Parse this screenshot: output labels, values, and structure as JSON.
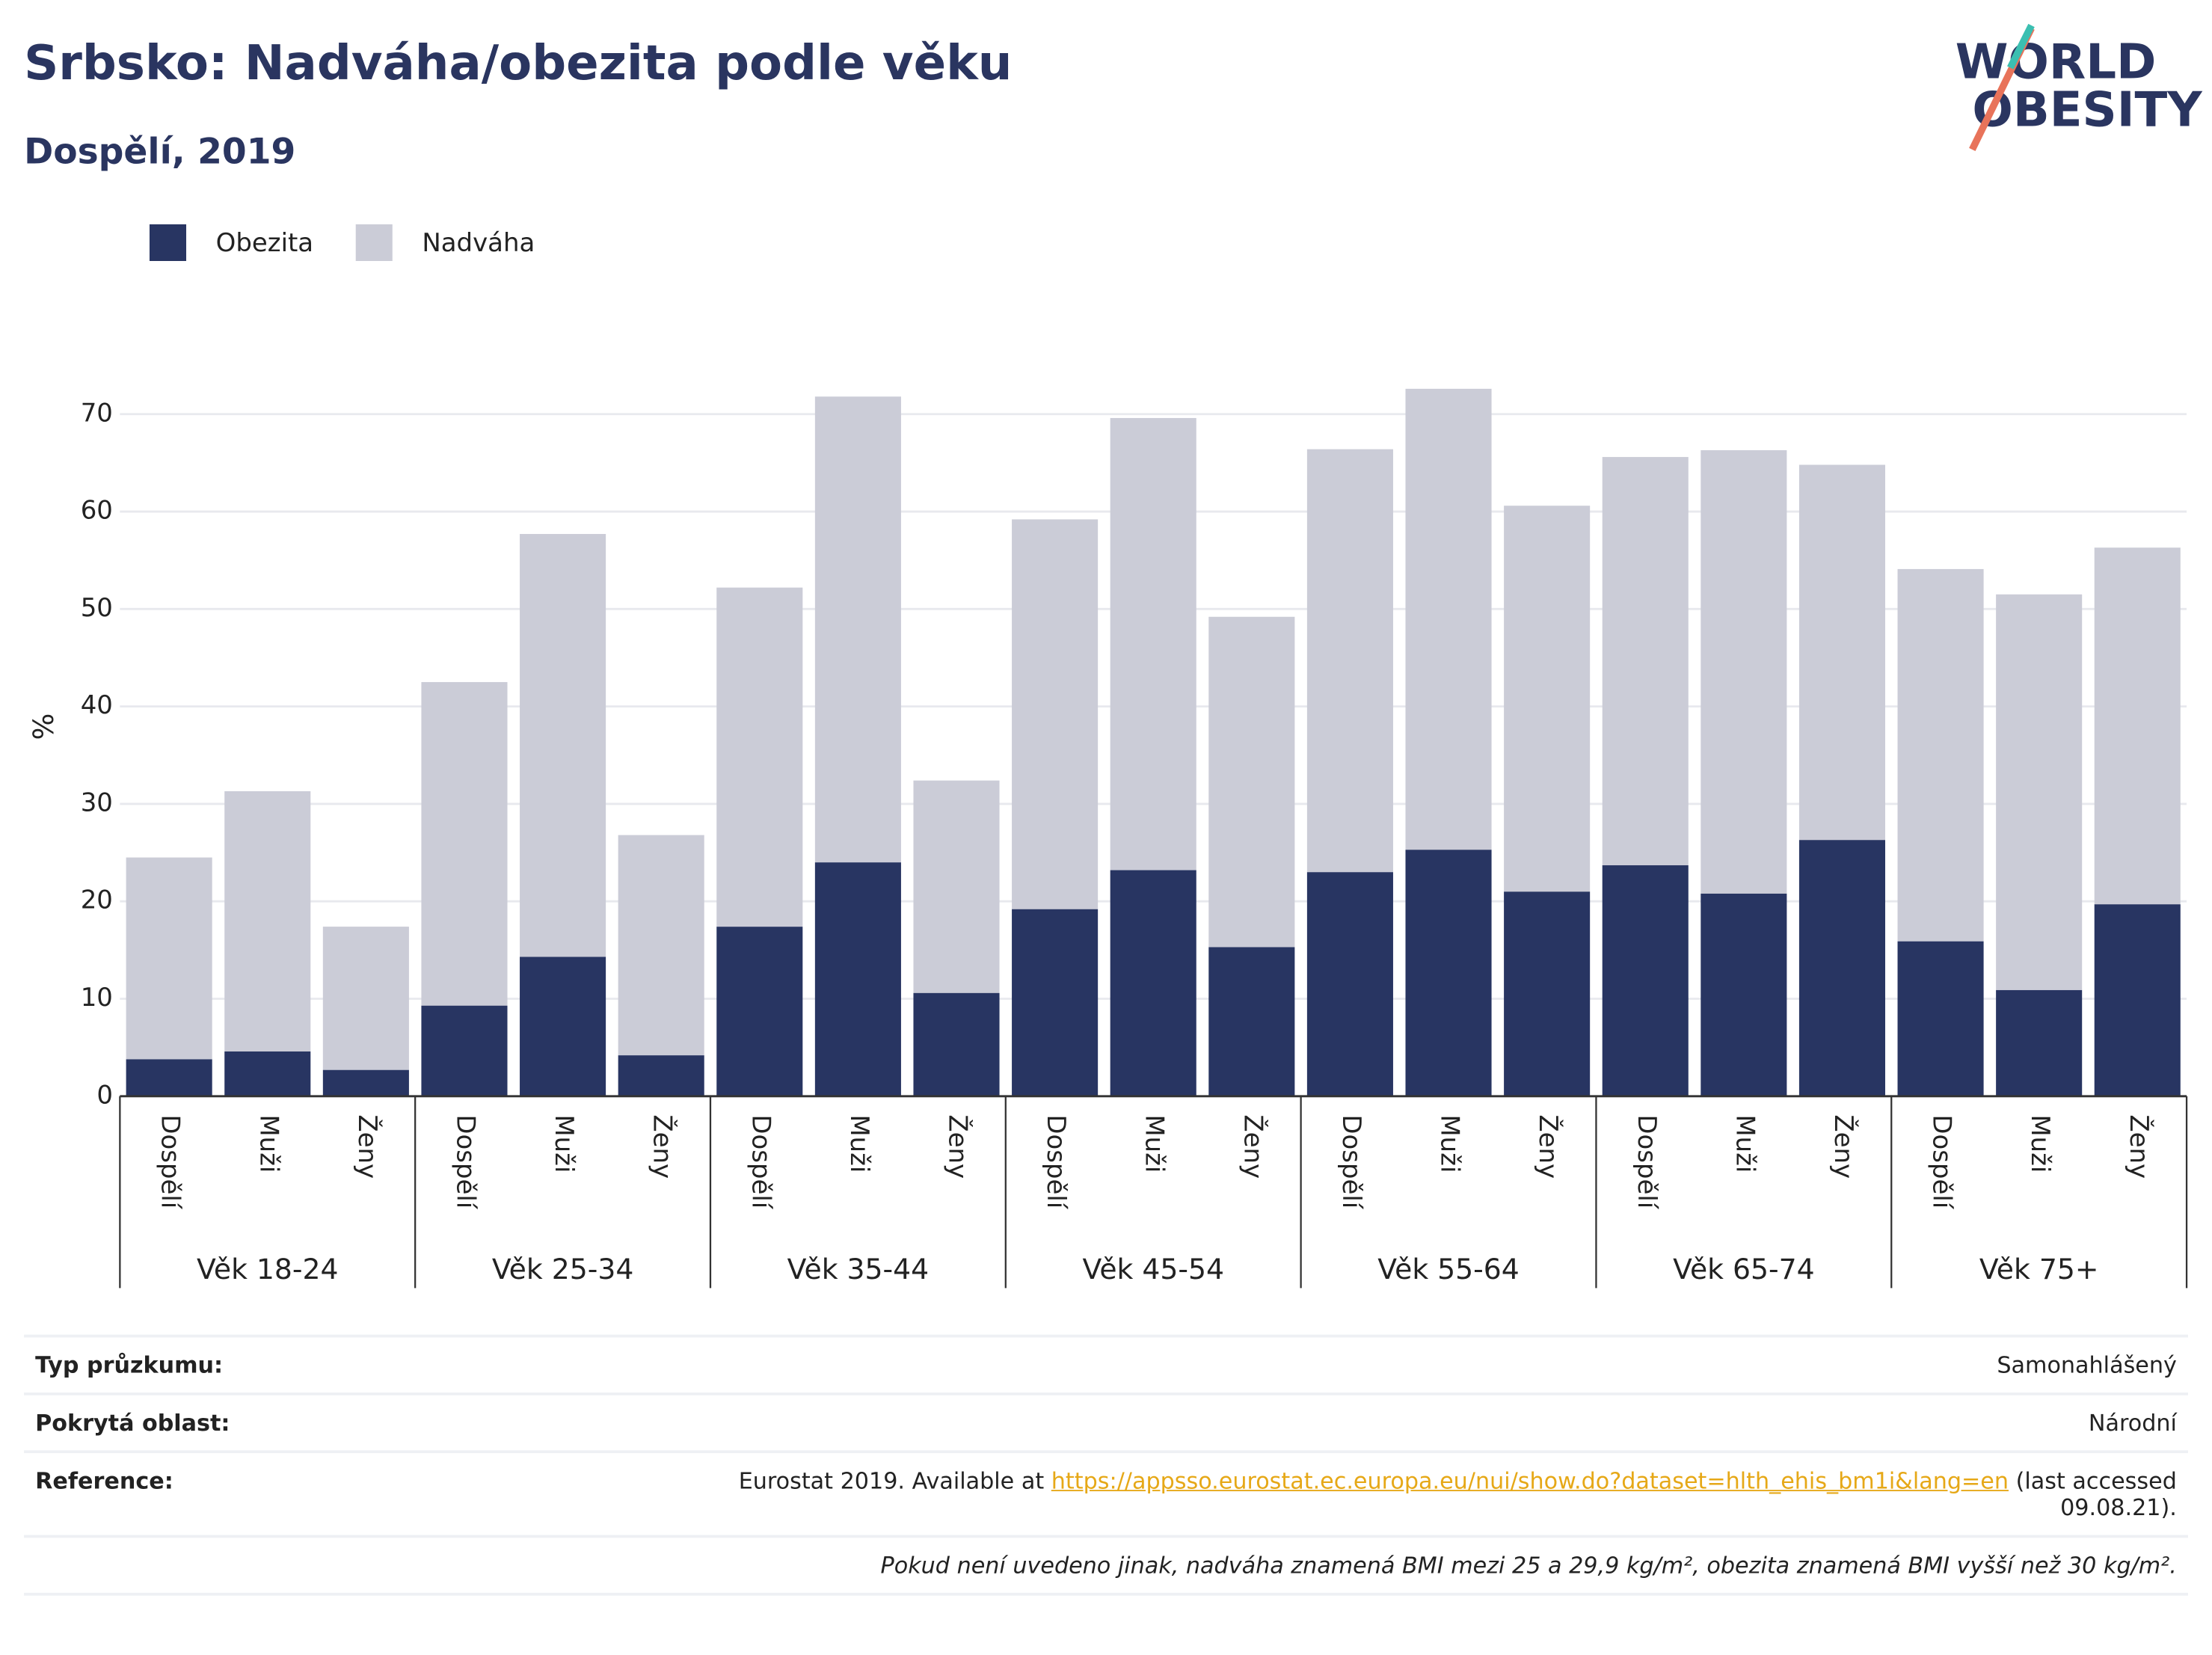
{
  "chart_data": {
    "type": "bar",
    "stacked": true,
    "title": "Srbsko: Nadváha/obezita podle věku",
    "subtitle": "Dospělí, 2019",
    "ylabel": "%",
    "groups": [
      "Věk 18-24",
      "Věk 25-34",
      "Věk 35-44",
      "Věk 45-54",
      "Věk 55-64",
      "Věk 65-74",
      "Věk 75+"
    ],
    "categories": [
      "Dospělí",
      "Muži",
      "Ženy",
      "Dospělí",
      "Muži",
      "Ženy",
      "Dospělí",
      "Muži",
      "Ženy",
      "Dospělí",
      "Muži",
      "Ženy",
      "Dospělí",
      "Muži",
      "Ženy",
      "Dospělí",
      "Muži",
      "Ženy",
      "Dospělí",
      "Muži",
      "Ženy"
    ],
    "series": [
      {
        "name": "Obezita",
        "color": "#283562",
        "values": [
          3.8,
          4.6,
          2.7,
          9.3,
          14.3,
          4.2,
          17.4,
          24.0,
          10.6,
          19.2,
          23.2,
          15.3,
          23.0,
          25.3,
          21.0,
          23.7,
          20.8,
          26.3,
          15.9,
          10.9,
          19.7
        ]
      },
      {
        "name": "Nadváha",
        "color": "#cbccd7",
        "values": [
          20.7,
          26.7,
          14.7,
          33.2,
          43.4,
          22.6,
          34.8,
          47.8,
          21.8,
          40.0,
          46.4,
          33.9,
          43.4,
          47.3,
          39.6,
          41.9,
          45.5,
          38.5,
          38.2,
          40.6,
          36.6
        ]
      }
    ],
    "ylim": [
      0,
      75
    ],
    "yticks": [
      0,
      10,
      20,
      30,
      40,
      50,
      60,
      70
    ],
    "grid": true,
    "legend": "top-left"
  },
  "logo": {
    "line1": "WORLD",
    "line2": "OBESITY"
  },
  "info": [
    {
      "label": "Typ průzkumu:",
      "value": "Samonahlášený"
    },
    {
      "label": "Pokrytá oblast:",
      "value": "Národní"
    }
  ],
  "reference": {
    "label": "Reference:",
    "before": "Eurostat 2019. Available at",
    "link": "https://appsso.eurostat.ec.europa.eu/nui/show.do?dataset=hlth_ehis_bm1i&lang=en",
    "after": "(last accessed 09.08.21)."
  },
  "footnote": "Pokud není uvedeno jinak, nadváha znamená BMI mezi 25 a 29,9 kg/m², obezita znamená BMI vyšší než 30 kg/m²."
}
